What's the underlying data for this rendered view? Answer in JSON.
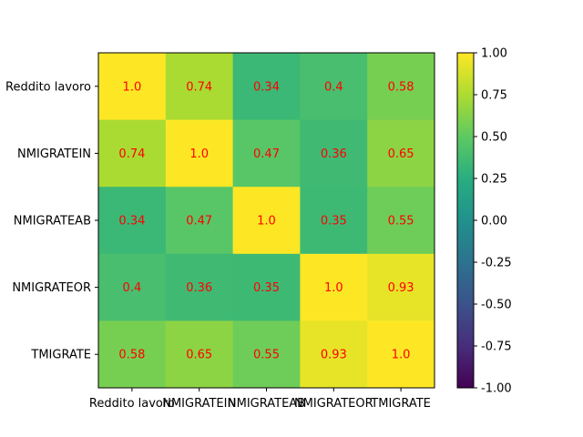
{
  "chart_data": {
    "type": "heatmap",
    "title": "",
    "xlabel": "",
    "ylabel": "",
    "x_categories": [
      "Reddito lavoro",
      "NMIGRATEIN",
      "NMIGRATEAB",
      "NMIGRATEOR",
      "TMIGRATE"
    ],
    "y_categories": [
      "Reddito lavoro",
      "NMIGRATEIN",
      "NMIGRATEAB",
      "NMIGRATEOR",
      "TMIGRATE"
    ],
    "values": [
      [
        1.0,
        0.74,
        0.34,
        0.4,
        0.58
      ],
      [
        0.74,
        1.0,
        0.47,
        0.36,
        0.65
      ],
      [
        0.34,
        0.47,
        1.0,
        0.35,
        0.55
      ],
      [
        0.4,
        0.36,
        0.35,
        1.0,
        0.93
      ],
      [
        0.58,
        0.65,
        0.55,
        0.93,
        1.0
      ]
    ],
    "cell_labels": [
      [
        "1.0",
        "0.74",
        "0.34",
        "0.4",
        "0.58"
      ],
      [
        "0.74",
        "1.0",
        "0.47",
        "0.36",
        "0.65"
      ],
      [
        "0.34",
        "0.47",
        "1.0",
        "0.35",
        "0.55"
      ],
      [
        "0.4",
        "0.36",
        "0.35",
        "1.0",
        "0.93"
      ],
      [
        "0.58",
        "0.65",
        "0.55",
        "0.93",
        "1.0"
      ]
    ],
    "colormap": "viridis",
    "vmin": -1.0,
    "vmax": 1.0,
    "annotation_color": "#ff0000",
    "colorbar": {
      "ticks": [
        1.0,
        0.75,
        0.5,
        0.25,
        0.0,
        -0.25,
        -0.5,
        -0.75,
        -1.0
      ],
      "tick_labels": [
        "1.00",
        "0.75",
        "0.50",
        "0.25",
        "0.00",
        "-0.25",
        "-0.50",
        "-0.75",
        "-1.00"
      ]
    },
    "grid": false
  }
}
